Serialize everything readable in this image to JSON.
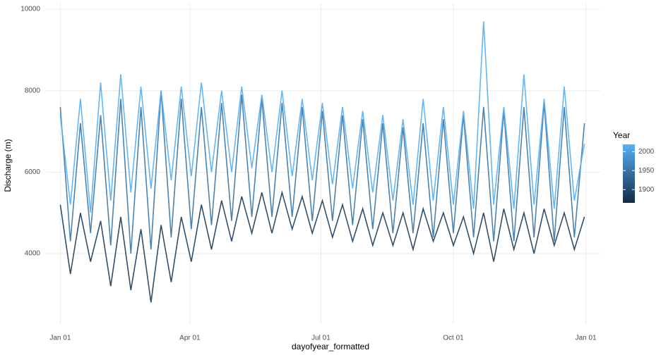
{
  "chart_data": {
    "type": "line",
    "x_label": "dayofyear_formatted",
    "y_label": "Discharge (m)",
    "xlim": [
      -9,
      376
    ],
    "xticks": [
      {
        "value": 1,
        "label": "Jan 01"
      },
      {
        "value": 91,
        "label": "Apr 01"
      },
      {
        "value": 182,
        "label": "Jul 01"
      },
      {
        "value": 274,
        "label": "Oct 01"
      },
      {
        "value": 366,
        "label": "Jan 01"
      }
    ],
    "ylim": [
      2270,
      10140
    ],
    "yticks": [
      4000,
      6000,
      8000,
      10000
    ],
    "grid": true,
    "colorbar": {
      "title": "Year",
      "limits": [
        1865,
        2019
      ],
      "ticks": [
        1900,
        1950,
        2000
      ],
      "low": "#132B43",
      "high": "#56B1F7"
    },
    "x": [
      1,
      8,
      15,
      22,
      29,
      36,
      43,
      50,
      57,
      64,
      71,
      78,
      85,
      92,
      99,
      106,
      113,
      120,
      127,
      134,
      141,
      148,
      155,
      162,
      169,
      176,
      183,
      190,
      197,
      204,
      211,
      218,
      225,
      232,
      239,
      246,
      253,
      260,
      267,
      274,
      281,
      288,
      295,
      302,
      309,
      316,
      323,
      330,
      337,
      344,
      351,
      358,
      365
    ],
    "series": [
      {
        "year": 1885,
        "values": [
          5200,
          3500,
          5000,
          3800,
          4800,
          3200,
          4900,
          3100,
          4600,
          2800,
          4700,
          3300,
          4900,
          3800,
          5200,
          4100,
          5300,
          4300,
          5400,
          4500,
          5500,
          4500,
          5500,
          4600,
          5400,
          4500,
          5300,
          4400,
          5200,
          4300,
          5100,
          4200,
          5000,
          4200,
          5000,
          4100,
          5100,
          4300,
          5000,
          4200,
          4900,
          4000,
          5000,
          3800,
          5100,
          4100,
          5000,
          4000,
          5100,
          4200,
          5000,
          4100,
          4900
        ]
      },
      {
        "year": 1950,
        "values": [
          7600,
          4300,
          7200,
          4500,
          7400,
          4200,
          7800,
          4000,
          7600,
          4100,
          8000,
          4400,
          7800,
          4600,
          7600,
          4700,
          7700,
          4800,
          7900,
          4900,
          7800,
          4900,
          7700,
          4900,
          7600,
          4800,
          7500,
          4800,
          7400,
          4700,
          7300,
          4600,
          7200,
          4500,
          7100,
          4500,
          7200,
          4400,
          7300,
          4500,
          7400,
          4400,
          7600,
          4300,
          7500,
          4300,
          7600,
          4400,
          7700,
          4300,
          7600,
          4400,
          7200
        ]
      },
      {
        "year": 2015,
        "values": [
          7400,
          5200,
          7800,
          5000,
          8200,
          5300,
          8400,
          5500,
          8100,
          5600,
          8000,
          5800,
          8100,
          5900,
          8200,
          6000,
          8000,
          6000,
          8100,
          6100,
          7900,
          6000,
          8000,
          5900,
          7800,
          5800,
          7700,
          5700,
          7600,
          5600,
          7500,
          5500,
          7400,
          5300,
          7300,
          5200,
          7800,
          5300,
          7600,
          5200,
          7500,
          5100,
          9700,
          5200,
          7600,
          5100,
          8400,
          5200,
          7800,
          5100,
          8100,
          5300,
          6700
        ]
      }
    ]
  }
}
